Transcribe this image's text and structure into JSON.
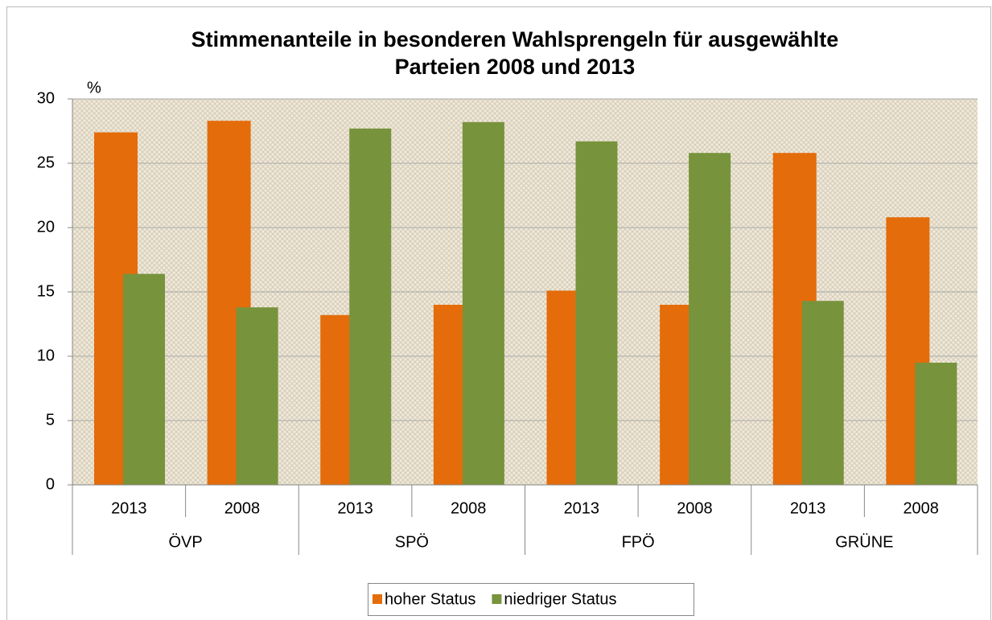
{
  "chart_data": {
    "type": "bar",
    "title": [
      "Stimmenanteile in besonderen Wahlsprengeln für ausgewählte",
      "Parteien 2008 und 2013"
    ],
    "y_unit": "%",
    "categories": [
      "2013",
      "2008",
      "2013",
      "2008",
      "2013",
      "2008",
      "2013",
      "2008"
    ],
    "groups": [
      "ÖVP",
      "SPÖ",
      "FPÖ",
      "GRÜNE"
    ],
    "series": [
      {
        "name": "hoher Status",
        "color": "#e46c0a",
        "values": [
          27.4,
          28.3,
          13.2,
          14.0,
          15.1,
          14.0,
          25.8,
          20.8
        ]
      },
      {
        "name": "niedriger Status",
        "color": "#77933c",
        "values": [
          16.4,
          13.8,
          27.7,
          28.2,
          26.7,
          25.8,
          14.3,
          9.5
        ]
      }
    ],
    "ylim": [
      0,
      30
    ],
    "yticks": [
      0,
      5,
      10,
      15,
      20,
      25,
      30
    ],
    "grid": true,
    "legend": "bottom"
  }
}
